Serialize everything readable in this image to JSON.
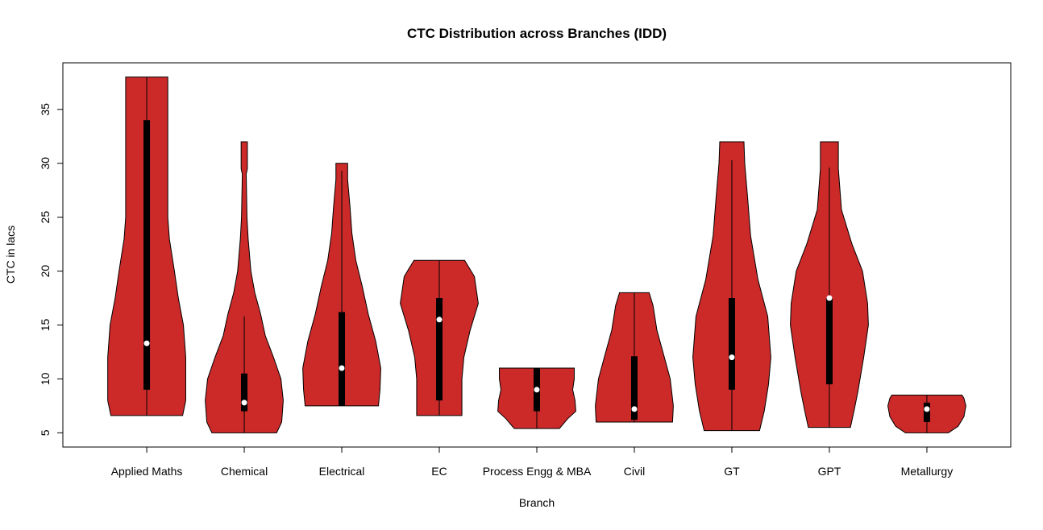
{
  "chart_data": {
    "type": "violin",
    "title": "CTC Distribution across Branches (IDD)",
    "xlabel": "Branch",
    "ylabel": "CTC in lacs",
    "ylim": [
      5,
      38
    ],
    "yticks": [
      5,
      10,
      15,
      20,
      25,
      30,
      35
    ],
    "grid": false,
    "fill_color": "#CC2929",
    "categories": [
      "Applied Maths",
      "Chemical",
      "Electrical",
      "EC",
      "Process Engg & MBA",
      "Civil",
      "GT",
      "GPT",
      "Metallurgy"
    ],
    "series": [
      {
        "min": 6.6,
        "q1": 9,
        "median": 13.3,
        "q3": 34,
        "max": 38,
        "whisker_low": 6.6,
        "whisker_high": 38,
        "density": [
          [
            6.6,
            0.92
          ],
          [
            8,
            1.0
          ],
          [
            12,
            1.0
          ],
          [
            15,
            0.94
          ],
          [
            17.5,
            0.81
          ],
          [
            20,
            0.71
          ],
          [
            23,
            0.58
          ],
          [
            25,
            0.54
          ],
          [
            30,
            0.54
          ],
          [
            38,
            0.54
          ]
        ]
      },
      {
        "min": 5,
        "q1": 7,
        "median": 7.8,
        "q3": 10.5,
        "max": 32,
        "whisker_low": 5,
        "whisker_high": 15.8,
        "density": [
          [
            5,
            0.83
          ],
          [
            6,
            0.96
          ],
          [
            8,
            1.0
          ],
          [
            10,
            0.94
          ],
          [
            12,
            0.75
          ],
          [
            14,
            0.54
          ],
          [
            16,
            0.42
          ],
          [
            18,
            0.27
          ],
          [
            20,
            0.17
          ],
          [
            23,
            0.1
          ],
          [
            25,
            0.07
          ],
          [
            29,
            0.05
          ],
          [
            29.5,
            0.08
          ],
          [
            32,
            0.08
          ]
        ]
      },
      {
        "min": 7.5,
        "q1": 7.5,
        "median": 11,
        "q3": 16.2,
        "max": 30,
        "whisker_low": 7.5,
        "whisker_high": 29.3,
        "density": [
          [
            7.5,
            0.94
          ],
          [
            9,
            0.98
          ],
          [
            11,
            1.0
          ],
          [
            13.5,
            0.87
          ],
          [
            16,
            0.68
          ],
          [
            18.5,
            0.53
          ],
          [
            21,
            0.36
          ],
          [
            23.5,
            0.26
          ],
          [
            26,
            0.21
          ],
          [
            28.5,
            0.15
          ],
          [
            30,
            0.15
          ]
        ]
      },
      {
        "min": 6.6,
        "q1": 8,
        "median": 15.5,
        "q3": 17.5,
        "max": 21,
        "whisker_low": 6.6,
        "whisker_high": 21,
        "density": [
          [
            6.6,
            0.58
          ],
          [
            10,
            0.58
          ],
          [
            12,
            0.63
          ],
          [
            14.5,
            0.79
          ],
          [
            17,
            1.0
          ],
          [
            19.5,
            0.9
          ],
          [
            21,
            0.65
          ]
        ]
      },
      {
        "min": 5.4,
        "q1": 7,
        "median": 9,
        "q3": 11,
        "max": 11,
        "whisker_low": 5.4,
        "whisker_high": 11,
        "density": [
          [
            5.4,
            0.58
          ],
          [
            6.3,
            0.79
          ],
          [
            7,
            1.0
          ],
          [
            8,
            0.98
          ],
          [
            9,
            0.92
          ],
          [
            10,
            0.96
          ],
          [
            11,
            0.96
          ]
        ]
      },
      {
        "min": 6,
        "q1": 6.2,
        "median": 7.2,
        "q3": 12.1,
        "max": 18,
        "whisker_low": 6,
        "whisker_high": 18,
        "density": [
          [
            6,
            0.98
          ],
          [
            7.5,
            1.0
          ],
          [
            10,
            0.92
          ],
          [
            12,
            0.77
          ],
          [
            14.5,
            0.58
          ],
          [
            16.8,
            0.48
          ],
          [
            18,
            0.38
          ]
        ]
      },
      {
        "min": 5.2,
        "q1": 9,
        "median": 12,
        "q3": 17.5,
        "max": 32,
        "whisker_low": 5.2,
        "whisker_high": 30.3,
        "density": [
          [
            5.2,
            0.71
          ],
          [
            7,
            0.83
          ],
          [
            9.5,
            0.94
          ],
          [
            12,
            1.0
          ],
          [
            15.8,
            0.92
          ],
          [
            19.2,
            0.67
          ],
          [
            23.3,
            0.48
          ],
          [
            27,
            0.4
          ],
          [
            30,
            0.33
          ],
          [
            32,
            0.31
          ]
        ]
      },
      {
        "min": 5.5,
        "q1": 9.5,
        "median": 17.5,
        "q3": 17.5,
        "max": 32,
        "whisker_low": 5.5,
        "whisker_high": 29.6,
        "density": [
          [
            5.5,
            0.54
          ],
          [
            7,
            0.63
          ],
          [
            8.8,
            0.73
          ],
          [
            12,
            0.88
          ],
          [
            15,
            1.0
          ],
          [
            17,
            0.98
          ],
          [
            20,
            0.85
          ],
          [
            22.5,
            0.58
          ],
          [
            25.7,
            0.31
          ],
          [
            29.5,
            0.23
          ],
          [
            32,
            0.23
          ]
        ]
      },
      {
        "min": 5,
        "q1": 6,
        "median": 7.2,
        "q3": 7.8,
        "max": 8.5,
        "whisker_low": 5,
        "whisker_high": 8.5,
        "density": [
          [
            5,
            0.55
          ],
          [
            5.6,
            0.8
          ],
          [
            6.5,
            0.95
          ],
          [
            7.5,
            1.0
          ],
          [
            8.2,
            0.95
          ],
          [
            8.5,
            0.9
          ]
        ]
      }
    ]
  }
}
